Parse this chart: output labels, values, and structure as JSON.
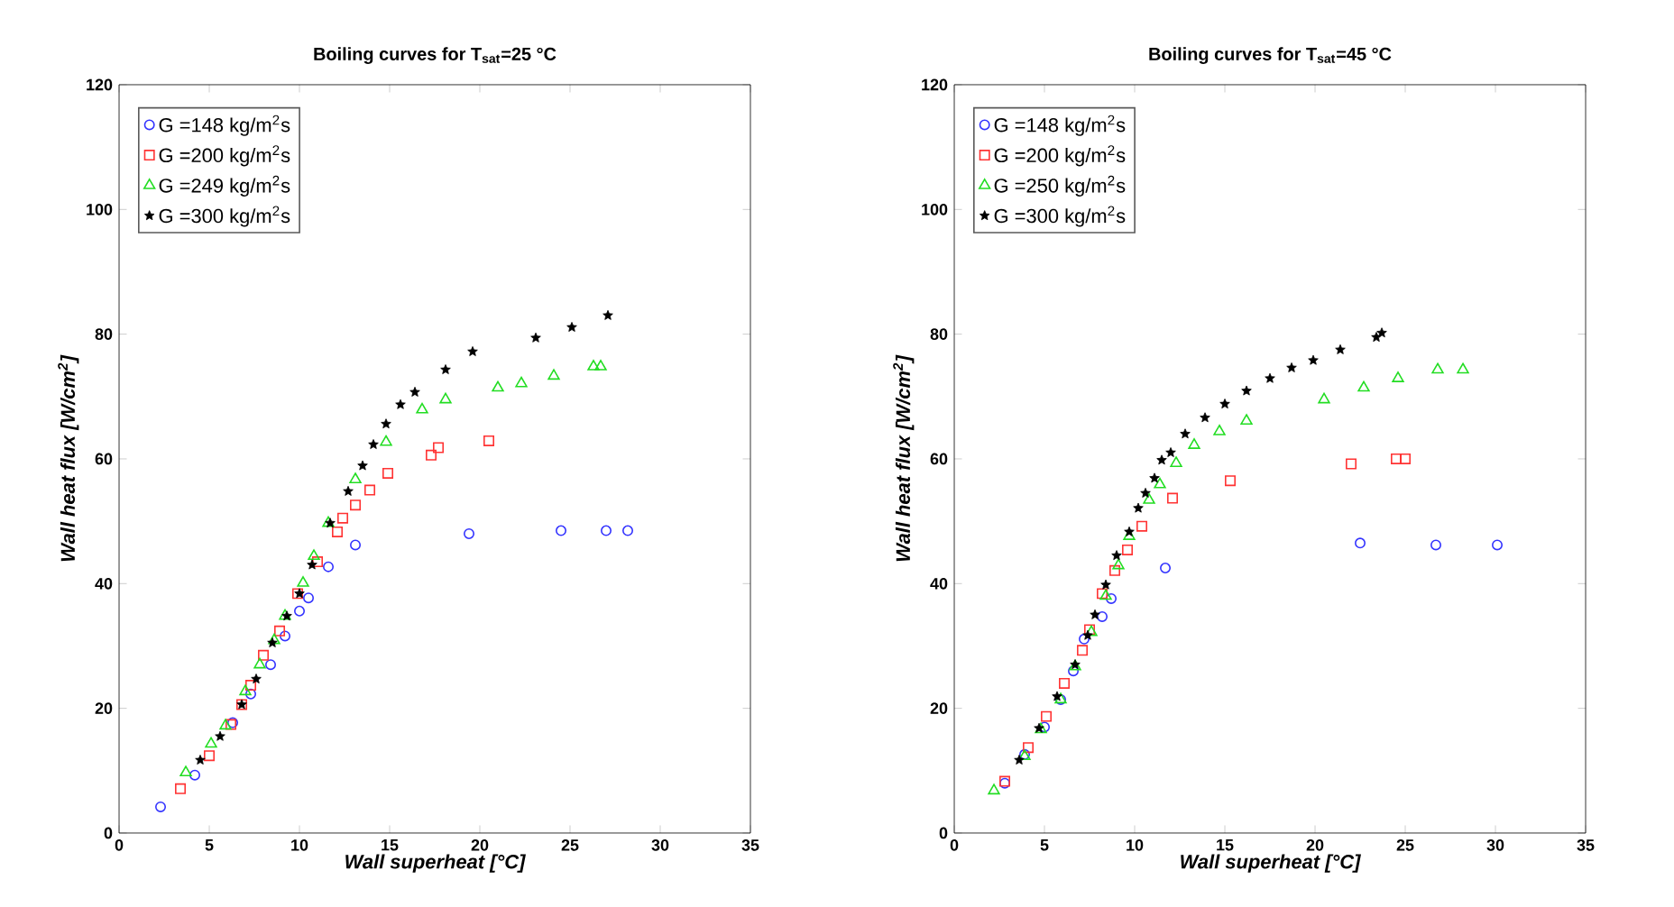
{
  "chart_data": [
    {
      "type": "scatter",
      "title": "Boiling curves for T$_{sat}$=25 °C",
      "xlabel": "Wall superheat [°C]",
      "ylabel": "Wall heat flux [W/cm$^{2}$]",
      "xlim": [
        0,
        35
      ],
      "ylim": [
        0,
        120
      ],
      "xticks": [
        0,
        5,
        10,
        15,
        20,
        25,
        30,
        35
      ],
      "yticks": [
        0,
        20,
        40,
        60,
        80,
        100,
        120
      ],
      "legend": "top left",
      "series": [
        {
          "name": "G =148 kg/m$^{2}$s",
          "color": "#3333ff",
          "marker": "circle",
          "x": [
            2.3,
            4.2,
            6.3,
            7.3,
            8.4,
            9.2,
            10,
            10.5,
            11.6,
            13.1,
            19.4,
            24.5,
            27,
            28.2
          ],
          "values": [
            4.2,
            9.3,
            17.7,
            22.3,
            27,
            31.6,
            35.6,
            37.7,
            42.7,
            46.2,
            48,
            48.5,
            48.5,
            48.5
          ]
        },
        {
          "name": "G =200 kg/m$^{2}$s",
          "color": "#ff3333",
          "marker": "square",
          "x": [
            3.4,
            5,
            6.2,
            6.8,
            7.3,
            8,
            8.9,
            9.9,
            11,
            12.1,
            12.4,
            13.1,
            13.9,
            14.9,
            17.3,
            17.7,
            20.5
          ],
          "values": [
            7.1,
            12.4,
            17.4,
            20.6,
            23.7,
            28.5,
            32.4,
            38.4,
            43.5,
            48.3,
            50.5,
            52.6,
            55,
            57.7,
            60.6,
            61.8,
            62.9
          ]
        },
        {
          "name": "G =249 kg/m$^{2}$s",
          "color": "#22dd22",
          "marker": "triangle",
          "x": [
            3.7,
            5.1,
            5.9,
            7,
            7.8,
            8.6,
            9.2,
            10.2,
            10.8,
            11.6,
            13.1,
            14.8,
            16.8,
            18.1,
            21,
            22.3,
            24.1,
            26.3,
            26.7
          ],
          "values": [
            9.7,
            14.3,
            17.2,
            22.7,
            27,
            30.9,
            34.8,
            40.1,
            44.4,
            49.7,
            56.7,
            62.7,
            67.9,
            69.5,
            71.4,
            72.1,
            73.3,
            74.8,
            74.8
          ]
        },
        {
          "name": "G =300 kg/m$^{2}$s",
          "color": "#000000",
          "marker": "star",
          "x": [
            4.5,
            5.6,
            6.8,
            7.6,
            8.5,
            9.3,
            10,
            10.7,
            11.7,
            12.7,
            13.5,
            14.1,
            14.8,
            15.6,
            16.4,
            18.1,
            19.6,
            23.1,
            25.1,
            27.1
          ],
          "values": [
            11.7,
            15.5,
            20.6,
            24.7,
            30.5,
            34.8,
            38.4,
            43,
            49.7,
            54.8,
            58.9,
            62.3,
            65.6,
            68.7,
            70.7,
            74.3,
            77.2,
            79.4,
            81.1,
            83
          ]
        }
      ]
    },
    {
      "type": "scatter",
      "title": "Boiling curves for T$_{sat}$=45 °C",
      "xlabel": "Wall superheat [°C]",
      "ylabel": "Wall heat flux [W/cm$^{2}$]",
      "xlim": [
        0,
        35
      ],
      "ylim": [
        0,
        120
      ],
      "xticks": [
        0,
        5,
        10,
        15,
        20,
        25,
        30,
        35
      ],
      "yticks": [
        0,
        20,
        40,
        60,
        80,
        100,
        120
      ],
      "legend": "top left",
      "series": [
        {
          "name": "G =148 kg/m$^{2}$s",
          "color": "#3333ff",
          "marker": "circle",
          "x": [
            2.8,
            3.9,
            5,
            5.9,
            6.6,
            7.2,
            8.2,
            8.7,
            11.7,
            22.5,
            26.7,
            30.1
          ],
          "values": [
            8,
            12.6,
            17,
            21.4,
            26,
            31.1,
            34.7,
            37.6,
            42.5,
            46.5,
            46.2,
            46.2
          ]
        },
        {
          "name": "G =200 kg/m$^{2}$s",
          "color": "#ff3333",
          "marker": "square",
          "x": [
            2.8,
            4.1,
            5.1,
            6.1,
            7.1,
            7.5,
            8.2,
            8.9,
            9.6,
            10.4,
            12.1,
            15.3,
            22,
            24.5,
            25
          ],
          "values": [
            8.3,
            13.7,
            18.7,
            24,
            29.3,
            32.6,
            38.4,
            42.1,
            45.4,
            49.2,
            53.7,
            56.5,
            59.2,
            60,
            60
          ]
        },
        {
          "name": "G =250 kg/m$^{2}$s",
          "color": "#22dd22",
          "marker": "triangle",
          "x": [
            2.2,
            3.9,
            4.8,
            5.9,
            6.7,
            7.6,
            8.4,
            9.1,
            9.7,
            10.8,
            11.4,
            12.3,
            13.3,
            14.7,
            16.2,
            20.5,
            22.7,
            24.6,
            26.8,
            28.2
          ],
          "values": [
            6.8,
            12.3,
            16.6,
            21.4,
            26.7,
            32.2,
            38,
            42.9,
            47.6,
            53.4,
            55.9,
            59.3,
            62.2,
            64.4,
            66.1,
            69.5,
            71.4,
            72.9,
            74.3,
            74.3
          ]
        },
        {
          "name": "G =300 kg/m$^{2}$s",
          "color": "#000000",
          "marker": "star",
          "x": [
            3.6,
            4.7,
            5.7,
            6.7,
            7.4,
            7.8,
            8.4,
            9,
            9.7,
            10.2,
            10.6,
            11.1,
            11.5,
            12,
            12.8,
            13.9,
            15,
            16.2,
            17.5,
            18.7,
            19.9,
            21.4,
            23.4,
            23.7
          ],
          "values": [
            11.7,
            16.8,
            21.9,
            27,
            31.7,
            35,
            39.8,
            44.5,
            48.3,
            52.1,
            54.5,
            56.9,
            59.8,
            61,
            64,
            66.6,
            68.8,
            70.9,
            72.9,
            74.6,
            75.8,
            77.5,
            79.5,
            80.2
          ]
        }
      ]
    }
  ]
}
